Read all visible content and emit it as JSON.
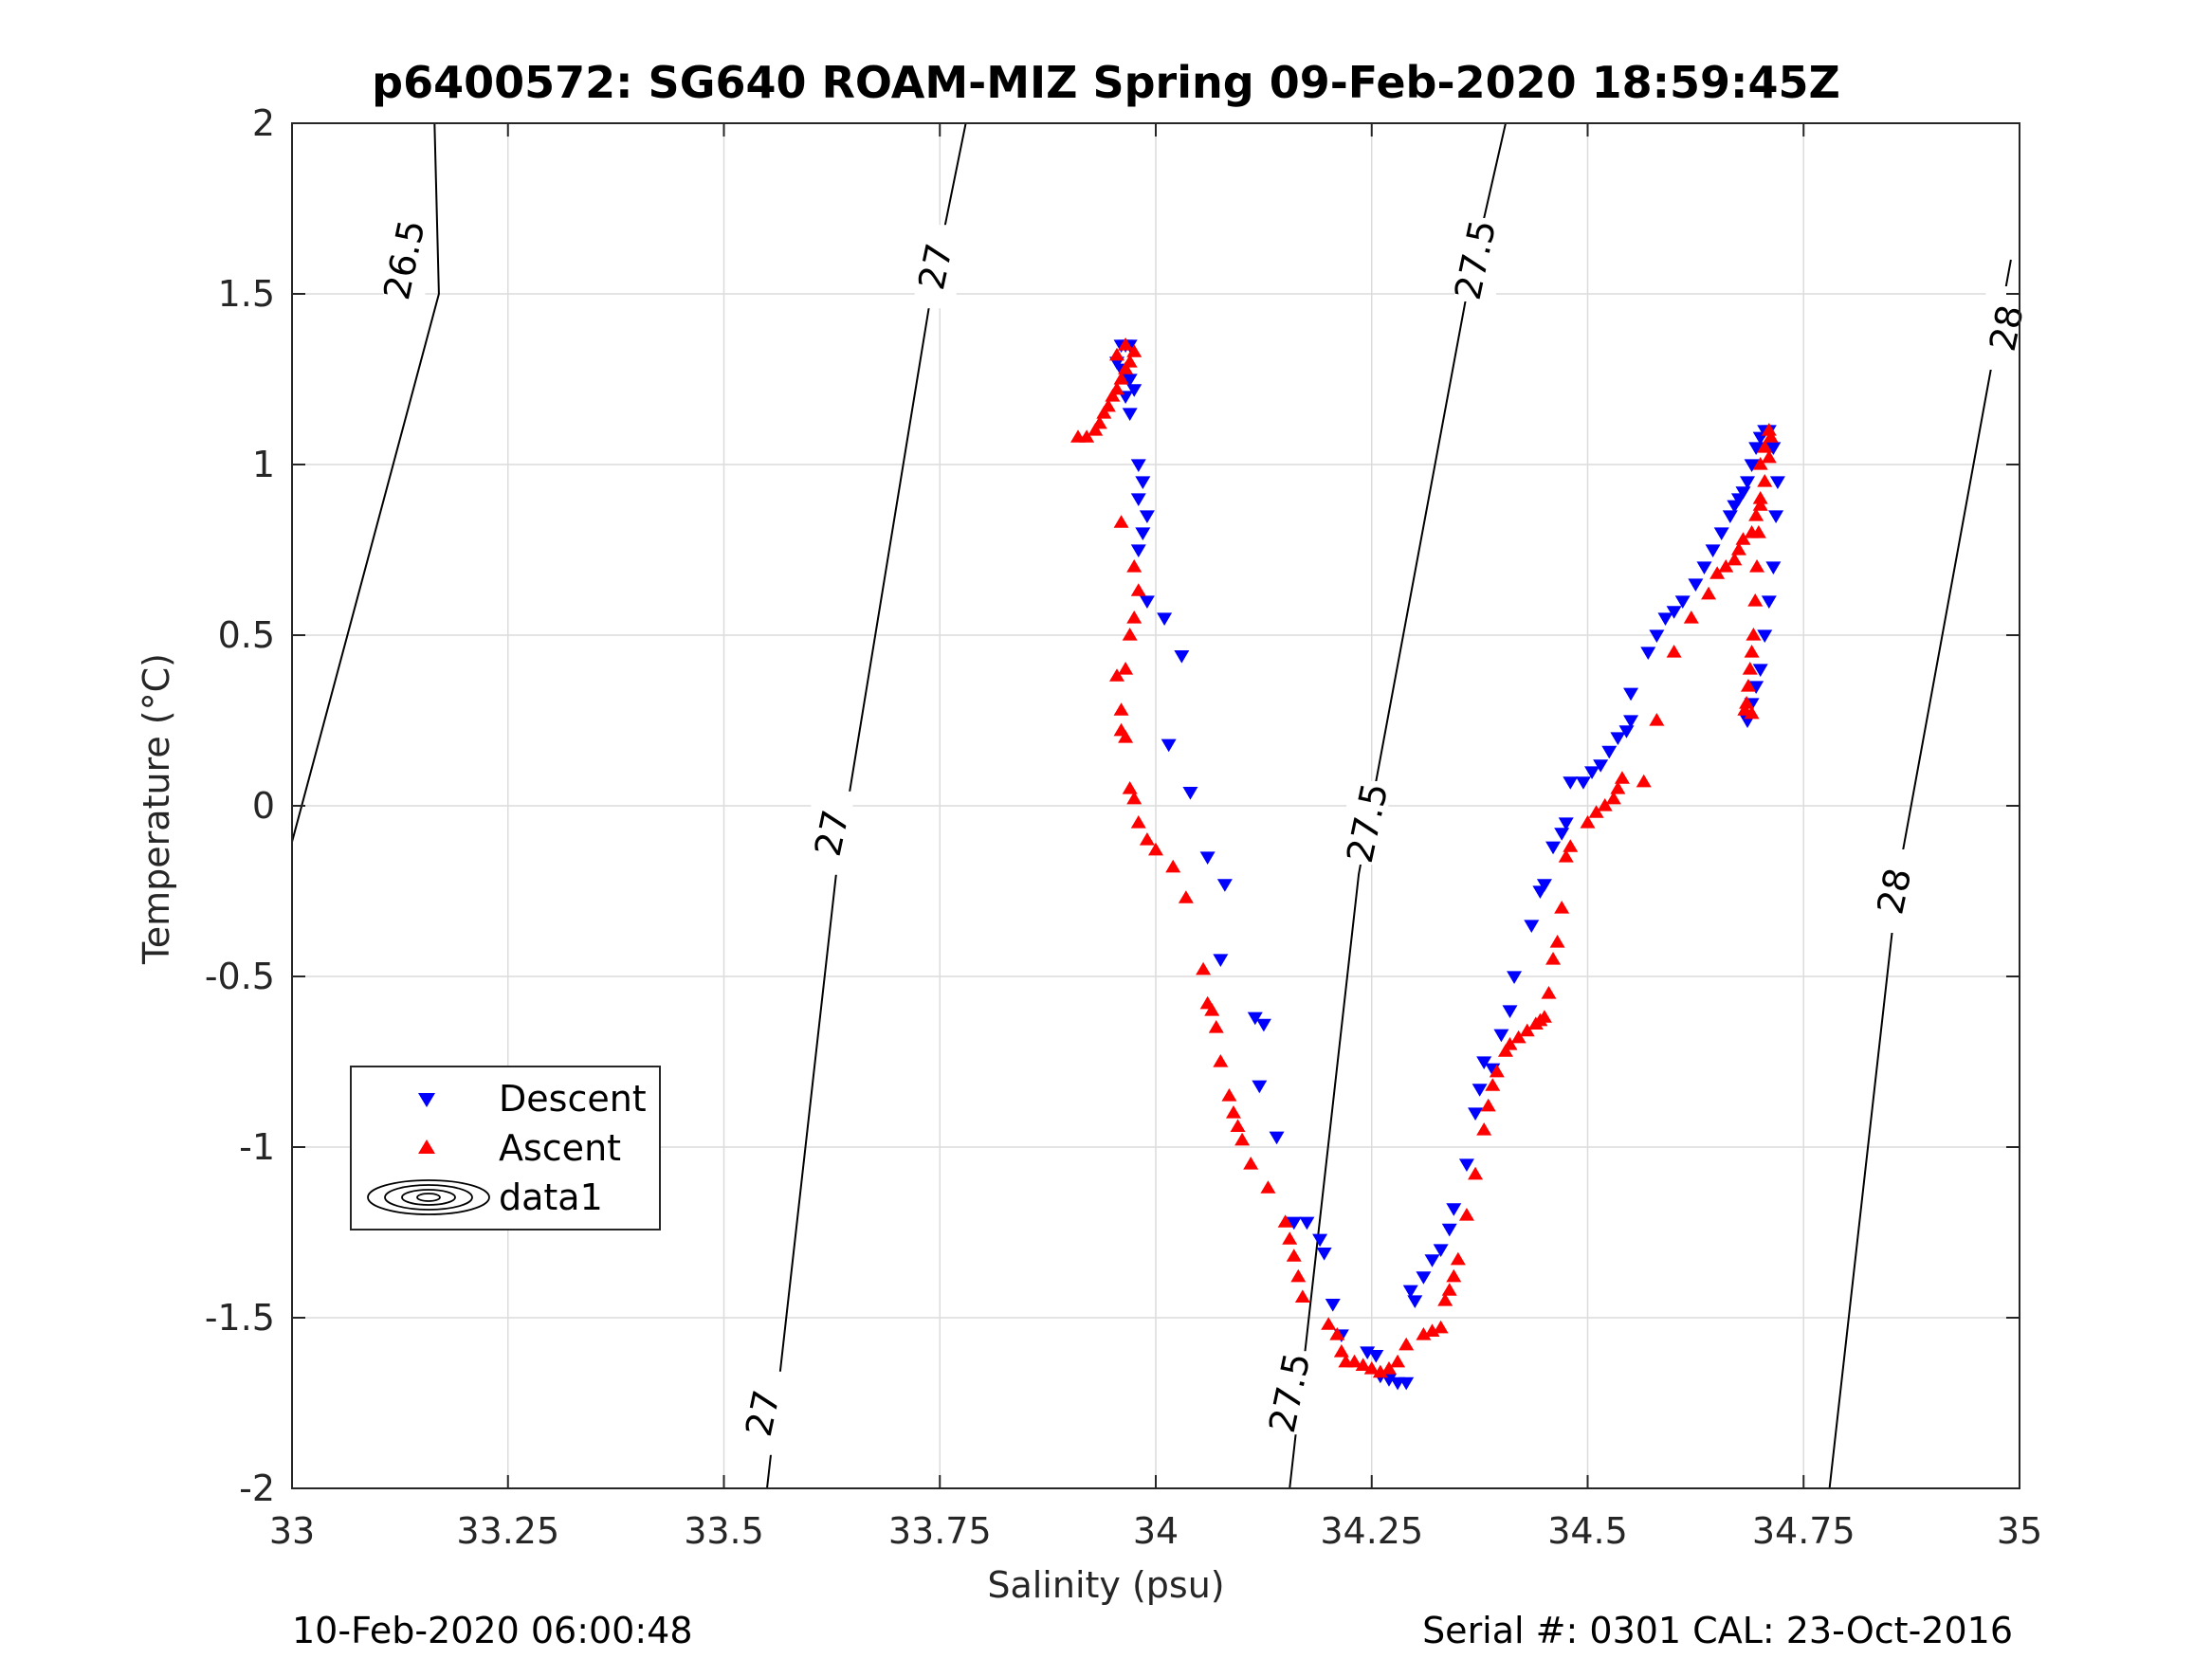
{
  "chart_data": {
    "type": "scatter",
    "title": "p6400572: SG640 ROAM-MIZ Spring 09-Feb-2020 18:59:45Z",
    "xlabel": "Salinity (psu)",
    "ylabel": "Temperature (°C)",
    "xlim": [
      33,
      35
    ],
    "ylim": [
      -2,
      2
    ],
    "xticks": [
      "33",
      "33.25",
      "33.5",
      "33.75",
      "34",
      "34.25",
      "34.5",
      "34.75",
      "35"
    ],
    "yticks": [
      "-2",
      "-1.5",
      "-1",
      "-0.5",
      "0",
      "0.5",
      "1",
      "1.5",
      "2"
    ],
    "grid": true,
    "legend": {
      "placement": "lower-left",
      "entries": [
        "Descent",
        "Ascent",
        "data1"
      ]
    },
    "colors": {
      "descent": "#0000ff",
      "ascent": "#ff0000",
      "contour": "#000000"
    },
    "density_contours": [
      {
        "label": "26.5",
        "points": [
          [
            32.99,
            -0.2
          ],
          [
            33.17,
            1.5
          ],
          [
            33.165,
            2.0
          ]
        ]
      },
      {
        "label": "27",
        "points": [
          [
            33.55,
            -2.0
          ],
          [
            33.63,
            -0.2
          ],
          [
            33.74,
            1.5
          ],
          [
            33.78,
            2.0
          ]
        ]
      },
      {
        "label": "27.5",
        "points": [
          [
            34.155,
            -2.0
          ],
          [
            34.235,
            -0.2
          ],
          [
            34.36,
            1.5
          ],
          [
            34.405,
            2.0
          ]
        ]
      },
      {
        "label": "28",
        "points": [
          [
            34.78,
            -2.0
          ],
          [
            34.86,
            -0.2
          ],
          [
            34.99,
            1.6
          ]
        ]
      }
    ],
    "contour_labels": [
      {
        "label": "26.5",
        "x": 33.13,
        "y": 1.6
      },
      {
        "label": "27",
        "x": 33.745,
        "y": 1.58
      },
      {
        "label": "27",
        "x": 33.625,
        "y": -0.08
      },
      {
        "label": "27",
        "x": 33.545,
        "y": -1.78
      },
      {
        "label": "27.5",
        "x": 34.37,
        "y": 1.6
      },
      {
        "label": "27.5",
        "x": 34.245,
        "y": -0.05
      },
      {
        "label": "27.5",
        "x": 34.155,
        "y": -1.72
      },
      {
        "label": "28",
        "x": 34.985,
        "y": 1.4
      },
      {
        "label": "28",
        "x": 34.855,
        "y": -0.25
      }
    ],
    "series": [
      {
        "name": "Descent",
        "marker": "triangle-down",
        "points": [
          [
            33.96,
            1.35
          ],
          [
            33.965,
            1.35
          ],
          [
            33.97,
            1.35
          ],
          [
            33.955,
            1.3
          ],
          [
            33.96,
            1.28
          ],
          [
            33.97,
            1.25
          ],
          [
            33.975,
            1.22
          ],
          [
            33.965,
            1.2
          ],
          [
            33.97,
            1.15
          ],
          [
            33.98,
            1.0
          ],
          [
            33.985,
            0.95
          ],
          [
            33.98,
            0.9
          ],
          [
            33.99,
            0.85
          ],
          [
            33.985,
            0.8
          ],
          [
            33.98,
            0.75
          ],
          [
            33.99,
            0.6
          ],
          [
            34.01,
            0.55
          ],
          [
            34.03,
            0.44
          ],
          [
            34.015,
            0.18
          ],
          [
            34.04,
            0.04
          ],
          [
            34.06,
            -0.15
          ],
          [
            34.08,
            -0.23
          ],
          [
            34.075,
            -0.45
          ],
          [
            34.115,
            -0.62
          ],
          [
            34.125,
            -0.64
          ],
          [
            34.12,
            -0.82
          ],
          [
            34.14,
            -0.97
          ],
          [
            34.16,
            -1.22
          ],
          [
            34.175,
            -1.22
          ],
          [
            34.19,
            -1.27
          ],
          [
            34.195,
            -1.31
          ],
          [
            34.205,
            -1.46
          ],
          [
            34.215,
            -1.55
          ],
          [
            34.245,
            -1.6
          ],
          [
            34.255,
            -1.61
          ],
          [
            34.26,
            -1.67
          ],
          [
            34.27,
            -1.68
          ],
          [
            34.28,
            -1.69
          ],
          [
            34.29,
            -1.69
          ],
          [
            34.295,
            -1.42
          ],
          [
            34.3,
            -1.45
          ],
          [
            34.31,
            -1.38
          ],
          [
            34.32,
            -1.33
          ],
          [
            34.33,
            -1.3
          ],
          [
            34.34,
            -1.24
          ],
          [
            34.345,
            -1.18
          ],
          [
            34.36,
            -1.05
          ],
          [
            34.37,
            -0.9
          ],
          [
            34.375,
            -0.83
          ],
          [
            34.38,
            -0.75
          ],
          [
            34.39,
            -0.77
          ],
          [
            34.4,
            -0.67
          ],
          [
            34.41,
            -0.6
          ],
          [
            34.415,
            -0.5
          ],
          [
            34.435,
            -0.35
          ],
          [
            34.445,
            -0.25
          ],
          [
            34.45,
            -0.23
          ],
          [
            34.46,
            -0.12
          ],
          [
            34.47,
            -0.08
          ],
          [
            34.475,
            -0.05
          ],
          [
            34.48,
            0.07
          ],
          [
            34.495,
            0.07
          ],
          [
            34.505,
            0.1
          ],
          [
            34.515,
            0.12
          ],
          [
            34.525,
            0.16
          ],
          [
            34.535,
            0.2
          ],
          [
            34.545,
            0.22
          ],
          [
            34.55,
            0.25
          ],
          [
            34.55,
            0.33
          ],
          [
            34.57,
            0.45
          ],
          [
            34.58,
            0.5
          ],
          [
            34.59,
            0.55
          ],
          [
            34.6,
            0.57
          ],
          [
            34.61,
            0.6
          ],
          [
            34.625,
            0.65
          ],
          [
            34.635,
            0.7
          ],
          [
            34.645,
            0.75
          ],
          [
            34.655,
            0.8
          ],
          [
            34.665,
            0.85
          ],
          [
            34.67,
            0.88
          ],
          [
            34.675,
            0.9
          ],
          [
            34.68,
            0.92
          ],
          [
            34.685,
            0.95
          ],
          [
            34.69,
            1.0
          ],
          [
            34.695,
            1.05
          ],
          [
            34.7,
            1.08
          ],
          [
            34.705,
            1.1
          ],
          [
            34.71,
            1.1
          ],
          [
            34.715,
            1.05
          ],
          [
            34.72,
            0.95
          ],
          [
            34.718,
            0.85
          ],
          [
            34.715,
            0.7
          ],
          [
            34.71,
            0.6
          ],
          [
            34.705,
            0.5
          ],
          [
            34.7,
            0.4
          ],
          [
            34.695,
            0.35
          ],
          [
            34.69,
            0.3
          ],
          [
            34.685,
            0.25
          ]
        ]
      },
      {
        "name": "Ascent",
        "marker": "triangle-up",
        "points": [
          [
            33.91,
            1.08
          ],
          [
            33.92,
            1.08
          ],
          [
            33.93,
            1.1
          ],
          [
            33.935,
            1.12
          ],
          [
            33.94,
            1.15
          ],
          [
            33.945,
            1.17
          ],
          [
            33.95,
            1.2
          ],
          [
            33.955,
            1.22
          ],
          [
            33.96,
            1.25
          ],
          [
            33.965,
            1.28
          ],
          [
            33.97,
            1.3
          ],
          [
            33.975,
            1.33
          ],
          [
            33.965,
            1.35
          ],
          [
            33.955,
            1.32
          ],
          [
            33.96,
            0.83
          ],
          [
            33.975,
            0.7
          ],
          [
            33.98,
            0.63
          ],
          [
            33.975,
            0.55
          ],
          [
            33.97,
            0.5
          ],
          [
            33.965,
            0.4
          ],
          [
            33.955,
            0.38
          ],
          [
            33.96,
            0.28
          ],
          [
            33.96,
            0.22
          ],
          [
            33.965,
            0.2
          ],
          [
            33.97,
            0.05
          ],
          [
            33.975,
            0.02
          ],
          [
            33.98,
            -0.05
          ],
          [
            33.99,
            -0.1
          ],
          [
            34.0,
            -0.13
          ],
          [
            34.02,
            -0.18
          ],
          [
            34.035,
            -0.27
          ],
          [
            34.055,
            -0.48
          ],
          [
            34.06,
            -0.58
          ],
          [
            34.065,
            -0.6
          ],
          [
            34.07,
            -0.65
          ],
          [
            34.075,
            -0.75
          ],
          [
            34.085,
            -0.85
          ],
          [
            34.09,
            -0.9
          ],
          [
            34.095,
            -0.94
          ],
          [
            34.1,
            -0.98
          ],
          [
            34.11,
            -1.05
          ],
          [
            34.13,
            -1.12
          ],
          [
            34.15,
            -1.22
          ],
          [
            34.155,
            -1.27
          ],
          [
            34.16,
            -1.32
          ],
          [
            34.165,
            -1.38
          ],
          [
            34.17,
            -1.44
          ],
          [
            34.2,
            -1.52
          ],
          [
            34.21,
            -1.55
          ],
          [
            34.215,
            -1.6
          ],
          [
            34.22,
            -1.63
          ],
          [
            34.23,
            -1.63
          ],
          [
            34.24,
            -1.64
          ],
          [
            34.25,
            -1.65
          ],
          [
            34.26,
            -1.66
          ],
          [
            34.27,
            -1.65
          ],
          [
            34.28,
            -1.63
          ],
          [
            34.29,
            -1.58
          ],
          [
            34.31,
            -1.55
          ],
          [
            34.32,
            -1.54
          ],
          [
            34.33,
            -1.53
          ],
          [
            34.335,
            -1.45
          ],
          [
            34.34,
            -1.42
          ],
          [
            34.345,
            -1.38
          ],
          [
            34.35,
            -1.33
          ],
          [
            34.36,
            -1.2
          ],
          [
            34.37,
            -1.08
          ],
          [
            34.38,
            -0.95
          ],
          [
            34.385,
            -0.88
          ],
          [
            34.39,
            -0.82
          ],
          [
            34.395,
            -0.78
          ],
          [
            34.405,
            -0.72
          ],
          [
            34.41,
            -0.7
          ],
          [
            34.42,
            -0.68
          ],
          [
            34.43,
            -0.66
          ],
          [
            34.44,
            -0.64
          ],
          [
            34.445,
            -0.63
          ],
          [
            34.45,
            -0.62
          ],
          [
            34.455,
            -0.55
          ],
          [
            34.46,
            -0.45
          ],
          [
            34.465,
            -0.4
          ],
          [
            34.47,
            -0.3
          ],
          [
            34.475,
            -0.15
          ],
          [
            34.48,
            -0.12
          ],
          [
            34.5,
            -0.05
          ],
          [
            34.51,
            -0.02
          ],
          [
            34.52,
            0.0
          ],
          [
            34.53,
            0.02
          ],
          [
            34.535,
            0.05
          ],
          [
            34.54,
            0.08
          ],
          [
            34.565,
            0.07
          ],
          [
            34.58,
            0.25
          ],
          [
            34.6,
            0.45
          ],
          [
            34.62,
            0.55
          ],
          [
            34.64,
            0.62
          ],
          [
            34.65,
            0.68
          ],
          [
            34.66,
            0.7
          ],
          [
            34.67,
            0.72
          ],
          [
            34.675,
            0.75
          ],
          [
            34.68,
            0.78
          ],
          [
            34.69,
            0.8
          ],
          [
            34.695,
            0.85
          ],
          [
            34.7,
            0.88
          ],
          [
            34.705,
            0.95
          ],
          [
            34.71,
            1.02
          ],
          [
            34.712,
            1.08
          ],
          [
            34.71,
            1.1
          ],
          [
            34.705,
            1.05
          ],
          [
            34.7,
            1.0
          ],
          [
            34.7,
            0.9
          ],
          [
            34.698,
            0.8
          ],
          [
            34.696,
            0.7
          ],
          [
            34.694,
            0.6
          ],
          [
            34.692,
            0.5
          ],
          [
            34.69,
            0.45
          ],
          [
            34.688,
            0.4
          ],
          [
            34.686,
            0.35
          ],
          [
            34.684,
            0.3
          ],
          [
            34.682,
            0.28
          ],
          [
            34.69,
            0.27
          ]
        ]
      }
    ]
  },
  "footer": {
    "left": "10-Feb-2020 06:00:48",
    "right": "Serial #: 0301  CAL: 23-Oct-2016"
  }
}
